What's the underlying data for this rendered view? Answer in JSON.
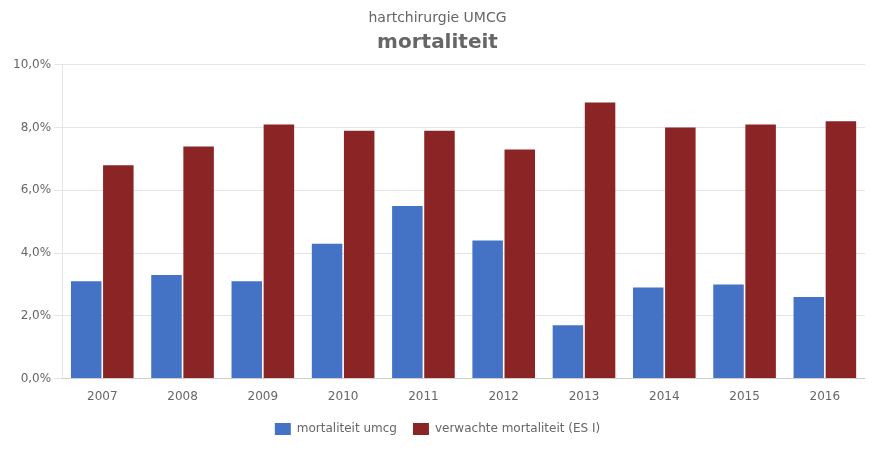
{
  "chart_data": {
    "type": "bar",
    "title": "mortaliteit",
    "subtitle": "hartchirurgie UMCG",
    "categories": [
      "2007",
      "2008",
      "2009",
      "2010",
      "2011",
      "2012",
      "2013",
      "2014",
      "2015",
      "2016"
    ],
    "series": [
      {
        "name": "mortaliteit umcg",
        "color": "#4472C4",
        "values": [
          0.031,
          0.033,
          0.031,
          0.043,
          0.055,
          0.044,
          0.017,
          0.029,
          0.03,
          0.026
        ]
      },
      {
        "name": "verwachte mortaliteit (ES I)",
        "color": "#8B2525",
        "values": [
          0.068,
          0.074,
          0.081,
          0.079,
          0.079,
          0.073,
          0.088,
          0.08,
          0.081,
          0.082
        ]
      }
    ],
    "ylim": [
      0,
      0.1
    ],
    "yticks": [
      {
        "value": 0.0,
        "label": "0,0%"
      },
      {
        "value": 0.02,
        "label": "2,0%"
      },
      {
        "value": 0.04,
        "label": "4,0%"
      },
      {
        "value": 0.06,
        "label": "6,0%"
      },
      {
        "value": 0.08,
        "label": "8,0%"
      },
      {
        "value": 0.1,
        "label": "10,0%"
      }
    ],
    "grid": true,
    "legend": "bottom"
  }
}
